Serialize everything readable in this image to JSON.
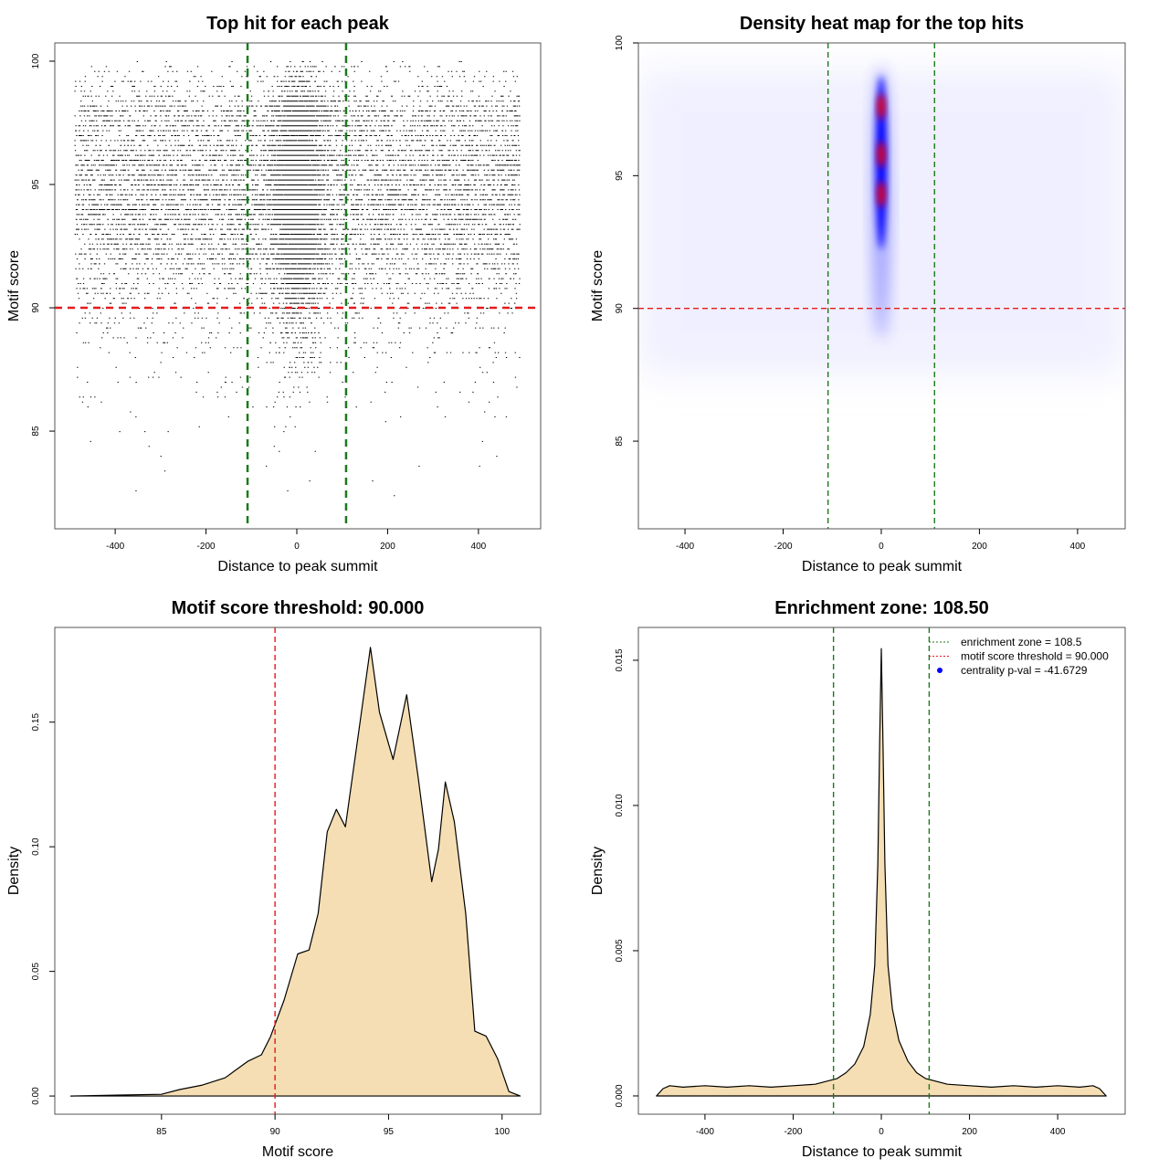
{
  "chart_data": [
    {
      "type": "scatter",
      "title": "Top hit for each peak",
      "xlabel": "Distance to peak summit",
      "ylabel": "Motif score",
      "xlim": [
        -533,
        537
      ],
      "ylim": [
        81.04,
        100.74
      ],
      "xticks": [
        -400,
        -200,
        0,
        200,
        400
      ],
      "yticks": [
        85,
        90,
        95,
        100
      ],
      "hlines": [
        {
          "y": 90,
          "color": "#e41a1c",
          "style": "dashed"
        }
      ],
      "vlines": [
        {
          "x": -108.5,
          "color": "#1a7a1a",
          "style": "dashed"
        },
        {
          "x": 108.5,
          "color": "#1a7a1a",
          "style": "dashed"
        }
      ],
      "point_color": "#000000"
    },
    {
      "type": "heatmap",
      "title": "Density heat map for the top hits",
      "xlabel": "Distance to peak summit",
      "ylabel": "Motif score",
      "xlim": [
        -495,
        497
      ],
      "ylim": [
        81.7,
        100
      ],
      "xticks": [
        -400,
        -200,
        0,
        200,
        400
      ],
      "yticks": [
        85,
        90,
        95,
        100
      ],
      "hlines": [
        {
          "y": 90,
          "color": "#e41a1c",
          "style": "dashed"
        }
      ],
      "vlines": [
        {
          "x": -108.5,
          "color": "#1a7a1a",
          "style": "dashed"
        },
        {
          "x": 108.5,
          "color": "#1a7a1a",
          "style": "dashed"
        }
      ],
      "colors": [
        "#ffffff",
        "#0000ff",
        "#ff0000"
      ],
      "hotspots": [
        {
          "x": 0,
          "y": 97.6
        },
        {
          "x": 0,
          "y": 95.8
        },
        {
          "x": 0,
          "y": 94.3
        }
      ]
    },
    {
      "type": "area",
      "title": "Motif score threshold: 90.000",
      "xlabel": "Motif score",
      "ylabel": "Density",
      "xlim": [
        80.3,
        101.7
      ],
      "ylim": [
        -0.0073,
        0.188
      ],
      "xticks": [
        85,
        90,
        95,
        100
      ],
      "yticks": [
        0,
        0.05,
        0.1,
        0.15
      ],
      "ytick_labels": [
        "0.00",
        "0.05",
        "0.10",
        "0.15"
      ],
      "fill": "#f5deb3",
      "vlines": [
        {
          "x": 90,
          "color": "#e41a1c",
          "style": "dashed"
        }
      ],
      "x": [
        81.0,
        85.0,
        85.8,
        86.8,
        87.8,
        88.8,
        89.4,
        89.8,
        90.4,
        91.0,
        91.5,
        91.9,
        92.3,
        92.7,
        93.1,
        93.7,
        94.2,
        94.6,
        95.2,
        95.8,
        96.3,
        96.9,
        97.2,
        97.5,
        97.9,
        98.4,
        98.8,
        99.3,
        99.8,
        100.3,
        100.8
      ],
      "y": [
        0,
        0.0007,
        0.0026,
        0.0044,
        0.0073,
        0.0139,
        0.0165,
        0.0238,
        0.0385,
        0.057,
        0.0586,
        0.0733,
        0.106,
        0.115,
        0.108,
        0.147,
        0.18,
        0.154,
        0.135,
        0.161,
        0.128,
        0.086,
        0.099,
        0.126,
        0.11,
        0.073,
        0.026,
        0.024,
        0.015,
        0.0018,
        0
      ]
    },
    {
      "type": "area",
      "title": "Enrichment zone: 108.50",
      "xlabel": "Distance to peak summit",
      "ylabel": "Density",
      "xlim": [
        -551,
        553
      ],
      "ylim": [
        -0.00063,
        0.01613
      ],
      "xticks": [
        -400,
        -200,
        0,
        200,
        400
      ],
      "yticks": [
        0,
        0.005,
        0.01,
        0.015
      ],
      "ytick_labels": [
        "0.000",
        "0.005",
        "0.010",
        "0.015"
      ],
      "fill": "#f5deb3",
      "vlines": [
        {
          "x": -108.5,
          "color": "#1a7a1a",
          "style": "dashed"
        },
        {
          "x": 108.5,
          "color": "#1a7a1a",
          "style": "dashed"
        }
      ],
      "x": [
        -510,
        -495,
        -480,
        -450,
        -400,
        -350,
        -300,
        -250,
        -200,
        -150,
        -100,
        -80,
        -60,
        -40,
        -25,
        -15,
        -8,
        -4,
        0,
        4,
        8,
        15,
        25,
        40,
        60,
        80,
        100,
        150,
        200,
        250,
        300,
        350,
        400,
        450,
        480,
        495,
        510
      ],
      "y": [
        0,
        0.00025,
        0.00035,
        0.0003,
        0.00035,
        0.0003,
        0.00035,
        0.0003,
        0.00035,
        0.0004,
        0.0006,
        0.0008,
        0.0011,
        0.0017,
        0.0028,
        0.0045,
        0.008,
        0.012,
        0.0154,
        0.012,
        0.008,
        0.0045,
        0.003,
        0.0019,
        0.0012,
        0.0008,
        0.0006,
        0.0004,
        0.00035,
        0.0003,
        0.00035,
        0.0003,
        0.00035,
        0.0003,
        0.00035,
        0.00025,
        0
      ],
      "legend": {
        "position": "top-right",
        "entries": [
          {
            "label": "enrichment zone = 108.5",
            "color": "#1a7a1a",
            "style": "dotted"
          },
          {
            "label": "motif score threshold = 90.000",
            "color": "#e41a1c",
            "style": "dotted"
          },
          {
            "label": "centrality p-val = -41.6729",
            "color": "#0000ff",
            "style": "point"
          }
        ]
      }
    }
  ]
}
